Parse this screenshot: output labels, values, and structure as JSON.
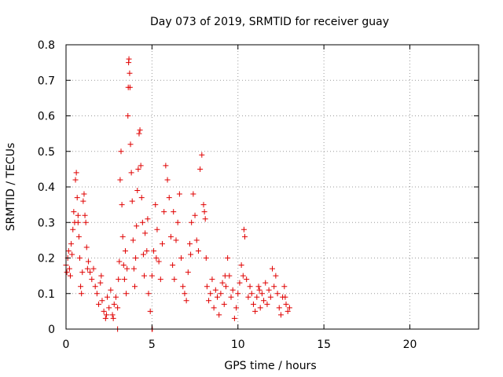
{
  "chart_data": {
    "type": "scatter",
    "title": "Day 073 of 2019, SRMTID for receiver guay",
    "xlabel": "GPS time / hours",
    "ylabel": "SRMTID / TECUs",
    "xlim": [
      0,
      24
    ],
    "ylim": [
      0,
      0.8
    ],
    "x_ticks": [
      0,
      5,
      10,
      15,
      20
    ],
    "y_ticks": [
      0,
      0.1,
      0.2,
      0.3,
      0.4,
      0.5,
      0.6,
      0.7,
      0.8
    ],
    "x_tick_labels": [
      "0",
      "5",
      "10",
      "15",
      "20"
    ],
    "y_tick_labels": [
      "0",
      "0.1",
      "0.2",
      "0.3",
      "0.4",
      "0.5",
      "0.6",
      "0.7",
      "0.8"
    ],
    "grid": true,
    "marker": "+",
    "color": "#e00000",
    "series": [
      {
        "name": "SRMTID",
        "points": [
          [
            0.0,
            0.18
          ],
          [
            0.05,
            0.16
          ],
          [
            0.1,
            0.2
          ],
          [
            0.15,
            0.22
          ],
          [
            0.2,
            0.17
          ],
          [
            0.25,
            0.15
          ],
          [
            0.3,
            0.24
          ],
          [
            0.35,
            0.21
          ],
          [
            0.4,
            0.28
          ],
          [
            0.45,
            0.33
          ],
          [
            0.5,
            0.3
          ],
          [
            0.55,
            0.42
          ],
          [
            0.6,
            0.44
          ],
          [
            0.65,
            0.37
          ],
          [
            0.7,
            0.3
          ],
          [
            0.75,
            0.26
          ],
          [
            0.8,
            0.2
          ],
          [
            0.85,
            0.12
          ],
          [
            0.9,
            0.1
          ],
          [
            0.95,
            0.16
          ],
          [
            1.0,
            0.36
          ],
          [
            1.05,
            0.38
          ],
          [
            1.1,
            0.32
          ],
          [
            1.15,
            0.3
          ],
          [
            1.2,
            0.23
          ],
          [
            1.3,
            0.19
          ],
          [
            1.4,
            0.16
          ],
          [
            1.5,
            0.14
          ],
          [
            1.6,
            0.17
          ],
          [
            1.7,
            0.12
          ],
          [
            1.8,
            0.1
          ],
          [
            1.9,
            0.07
          ],
          [
            2.0,
            0.13
          ],
          [
            2.1,
            0.08
          ],
          [
            2.2,
            0.05
          ],
          [
            2.3,
            0.03
          ],
          [
            2.4,
            0.09
          ],
          [
            2.5,
            0.06
          ],
          [
            2.6,
            0.11
          ],
          [
            2.7,
            0.04
          ],
          [
            2.8,
            0.07
          ],
          [
            2.9,
            0.09
          ],
          [
            3.0,
            0.06
          ],
          [
            3.05,
            0.14
          ],
          [
            3.1,
            0.19
          ],
          [
            3.15,
            0.42
          ],
          [
            3.2,
            0.5
          ],
          [
            3.25,
            0.35
          ],
          [
            3.3,
            0.26
          ],
          [
            3.35,
            0.18
          ],
          [
            3.4,
            0.14
          ],
          [
            3.45,
            0.22
          ],
          [
            3.5,
            0.1
          ],
          [
            3.55,
            0.17
          ],
          [
            3.6,
            0.6
          ],
          [
            3.62,
            0.68
          ],
          [
            3.64,
            0.75
          ],
          [
            3.66,
            0.76
          ],
          [
            3.7,
            0.72
          ],
          [
            3.72,
            0.68
          ],
          [
            3.75,
            0.52
          ],
          [
            3.8,
            0.44
          ],
          [
            3.85,
            0.36
          ],
          [
            3.9,
            0.25
          ],
          [
            3.95,
            0.17
          ],
          [
            4.0,
            0.12
          ],
          [
            4.05,
            0.2
          ],
          [
            4.1,
            0.29
          ],
          [
            4.15,
            0.39
          ],
          [
            4.2,
            0.45
          ],
          [
            4.25,
            0.55
          ],
          [
            4.3,
            0.56
          ],
          [
            4.35,
            0.46
          ],
          [
            4.4,
            0.37
          ],
          [
            4.45,
            0.3
          ],
          [
            4.5,
            0.21
          ],
          [
            4.55,
            0.15
          ],
          [
            4.6,
            0.27
          ],
          [
            4.7,
            0.22
          ],
          [
            4.8,
            0.1
          ],
          [
            4.9,
            0.05
          ],
          [
            5.0,
            0.15
          ],
          [
            5.1,
            0.22
          ],
          [
            5.2,
            0.35
          ],
          [
            5.3,
            0.28
          ],
          [
            5.4,
            0.19
          ],
          [
            5.5,
            0.14
          ],
          [
            5.6,
            0.24
          ],
          [
            5.7,
            0.33
          ],
          [
            5.8,
            0.46
          ],
          [
            5.9,
            0.42
          ],
          [
            6.0,
            0.37
          ],
          [
            6.1,
            0.26
          ],
          [
            6.2,
            0.18
          ],
          [
            6.3,
            0.14
          ],
          [
            6.4,
            0.25
          ],
          [
            6.5,
            0.3
          ],
          [
            6.6,
            0.38
          ],
          [
            6.7,
            0.2
          ],
          [
            6.8,
            0.12
          ],
          [
            6.9,
            0.1
          ],
          [
            7.0,
            0.08
          ],
          [
            7.1,
            0.16
          ],
          [
            7.2,
            0.24
          ],
          [
            7.3,
            0.3
          ],
          [
            7.4,
            0.38
          ],
          [
            7.5,
            0.32
          ],
          [
            7.6,
            0.25
          ],
          [
            7.7,
            0.22
          ],
          [
            7.8,
            0.45
          ],
          [
            7.9,
            0.49
          ],
          [
            8.0,
            0.35
          ],
          [
            8.05,
            0.33
          ],
          [
            8.1,
            0.31
          ],
          [
            8.15,
            0.2
          ],
          [
            8.2,
            0.12
          ],
          [
            8.3,
            0.08
          ],
          [
            8.4,
            0.1
          ],
          [
            8.5,
            0.14
          ],
          [
            8.6,
            0.06
          ],
          [
            8.7,
            0.11
          ],
          [
            8.8,
            0.09
          ],
          [
            8.9,
            0.04
          ],
          [
            9.0,
            0.1
          ],
          [
            9.1,
            0.13
          ],
          [
            9.2,
            0.07
          ],
          [
            9.3,
            0.12
          ],
          [
            9.4,
            0.2
          ],
          [
            9.5,
            0.15
          ],
          [
            9.6,
            0.09
          ],
          [
            9.7,
            0.11
          ],
          [
            9.8,
            0.03
          ],
          [
            9.9,
            0.06
          ],
          [
            10.0,
            0.1
          ],
          [
            10.1,
            0.13
          ],
          [
            10.2,
            0.18
          ],
          [
            10.3,
            0.15
          ],
          [
            10.35,
            0.28
          ],
          [
            10.4,
            0.26
          ],
          [
            10.5,
            0.14
          ],
          [
            10.6,
            0.09
          ],
          [
            10.7,
            0.12
          ],
          [
            10.8,
            0.1
          ],
          [
            10.9,
            0.07
          ],
          [
            11.0,
            0.05
          ],
          [
            11.1,
            0.09
          ],
          [
            11.2,
            0.12
          ],
          [
            11.3,
            0.06
          ],
          [
            11.4,
            0.1
          ],
          [
            11.5,
            0.08
          ],
          [
            11.6,
            0.13
          ],
          [
            11.7,
            0.07
          ],
          [
            11.8,
            0.11
          ],
          [
            11.9,
            0.09
          ],
          [
            12.0,
            0.17
          ],
          [
            12.1,
            0.12
          ],
          [
            12.2,
            0.15
          ],
          [
            12.3,
            0.1
          ],
          [
            12.4,
            0.06
          ],
          [
            12.5,
            0.04
          ],
          [
            12.6,
            0.09
          ],
          [
            12.7,
            0.12
          ],
          [
            12.8,
            0.07
          ],
          [
            12.9,
            0.05
          ],
          [
            13.0,
            0.06
          ],
          [
            2.05,
            0.15
          ],
          [
            2.35,
            0.04
          ],
          [
            2.75,
            0.03
          ],
          [
            3.0,
            0.0
          ],
          [
            5.0,
            0.0
          ],
          [
            5.02,
            0.0
          ],
          [
            0.7,
            0.32
          ],
          [
            1.25,
            0.17
          ],
          [
            4.75,
            0.31
          ],
          [
            5.25,
            0.2
          ],
          [
            6.25,
            0.33
          ],
          [
            7.25,
            0.21
          ],
          [
            9.25,
            0.15
          ],
          [
            11.25,
            0.11
          ],
          [
            12.75,
            0.09
          ]
        ]
      }
    ]
  }
}
